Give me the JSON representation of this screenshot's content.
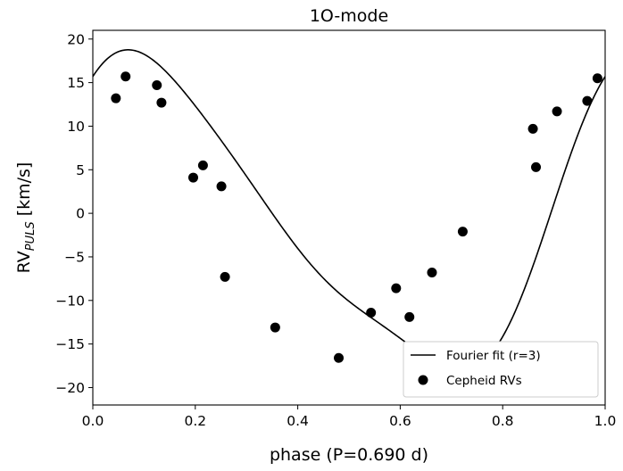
{
  "chart_data": {
    "type": "scatter",
    "title": "1O-mode",
    "xlabel": "phase (P=0.690 d)",
    "ylabel_main": "RV",
    "ylabel_sub": "PULS",
    "ylabel_unit": " [km/s]",
    "xlim": [
      0.0,
      1.0
    ],
    "ylim": [
      -22,
      21
    ],
    "xticks": [
      0.0,
      0.2,
      0.4,
      0.6,
      0.8,
      1.0
    ],
    "xtick_labels": [
      "0.0",
      "0.2",
      "0.4",
      "0.6",
      "0.8",
      "1.0"
    ],
    "yticks": [
      -20,
      -15,
      -10,
      -5,
      0,
      5,
      10,
      15,
      20
    ],
    "ytick_labels": [
      "−20",
      "−15",
      "−10",
      "−5",
      "0",
      "5",
      "10",
      "15",
      "20"
    ],
    "legend_position": "lower-right",
    "series": [
      {
        "name": "Fourier fit (r=3)",
        "kind": "line",
        "color": "#000000",
        "fourier": {
          "a0": -0.9,
          "a": [
            12.0,
            3.7,
            0.9
          ],
          "b": [
            12.5,
            1.8,
            -0.5
          ]
        }
      },
      {
        "name": "Cepheid RVs",
        "kind": "scatter",
        "color": "#000000",
        "x": [
          0.045,
          0.064,
          0.125,
          0.134,
          0.196,
          0.215,
          0.251,
          0.258,
          0.356,
          0.48,
          0.543,
          0.592,
          0.618,
          0.662,
          0.722,
          0.859,
          0.865,
          0.906,
          0.965,
          0.985
        ],
        "y": [
          13.2,
          15.7,
          14.7,
          12.7,
          4.1,
          5.5,
          3.1,
          -7.3,
          -13.1,
          -16.6,
          -11.4,
          -8.6,
          -11.9,
          -6.8,
          -2.1,
          9.7,
          5.3,
          11.7,
          12.9,
          15.5
        ]
      }
    ]
  }
}
